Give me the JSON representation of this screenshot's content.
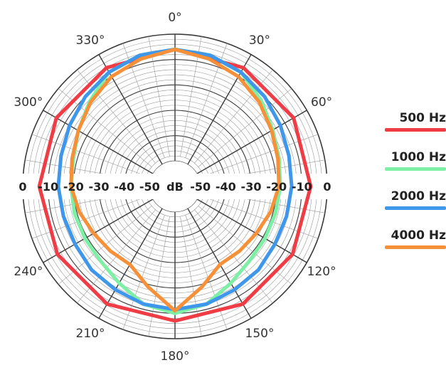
{
  "chart_data": {
    "type": "polar",
    "title": "",
    "angle_unit_label": "°",
    "angle_ticks": [
      0,
      30,
      60,
      120,
      150,
      180,
      210,
      240,
      300,
      330
    ],
    "angle_tick_labels": [
      "0°",
      "30°",
      "60°",
      "120°",
      "150°",
      "180°",
      "210°",
      "240°",
      "300°",
      "330°"
    ],
    "radial_axis_label": "dB",
    "radial_tick_labels": [
      "0",
      "-10",
      "-20",
      "-30",
      "-40",
      "-50"
    ],
    "radial_range_db": [
      -60,
      0
    ],
    "grid": true,
    "legend_position": "right",
    "series": [
      {
        "name": "500 Hz",
        "color": "#ef3c45",
        "angles": [
          0,
          30,
          60,
          90,
          120,
          150,
          180,
          210,
          240,
          270,
          300,
          330,
          360
        ],
        "values_db": [
          -6,
          -6,
          -6,
          -6.5,
          -6.5,
          -6.5,
          -7,
          -6.5,
          -6.5,
          -6.5,
          -6,
          -6,
          -6
        ]
      },
      {
        "name": "1000 Hz",
        "color": "#7ef0a5",
        "angles": [
          0,
          15,
          30,
          45,
          60,
          75,
          90,
          105,
          120,
          135,
          150,
          165,
          180,
          195,
          210,
          225,
          240,
          255,
          270,
          285,
          300,
          315,
          330,
          345,
          360
        ],
        "values_db": [
          -6,
          -6.5,
          -8,
          -12,
          -15.5,
          -17.5,
          -18.5,
          -19,
          -19,
          -18.5,
          -16,
          -12,
          -10,
          -12,
          -16,
          -18.5,
          -19,
          -19,
          -19,
          -18.5,
          -16,
          -12.5,
          -8,
          -6.5,
          -6
        ]
      },
      {
        "name": "2000 Hz",
        "color": "#3f97ec",
        "angles": [
          0,
          15,
          30,
          45,
          60,
          75,
          90,
          105,
          120,
          135,
          150,
          165,
          180,
          195,
          210,
          225,
          240,
          255,
          270,
          285,
          300,
          315,
          330,
          345,
          360
        ],
        "values_db": [
          -6,
          -6.5,
          -8,
          -10,
          -12,
          -13.5,
          -14,
          -14.5,
          -14.5,
          -13.5,
          -13,
          -12,
          -11.5,
          -12,
          -13,
          -13.5,
          -14.5,
          -14.5,
          -14,
          -13.5,
          -12,
          -10,
          -8,
          -6.5,
          -6
        ]
      },
      {
        "name": "4000 Hz",
        "color": "#f6913a",
        "angles": [
          0,
          15,
          30,
          45,
          60,
          75,
          90,
          105,
          120,
          135,
          150,
          165,
          180,
          195,
          210,
          225,
          240,
          255,
          270,
          285,
          300,
          315,
          330,
          345,
          360
        ],
        "values_db": [
          -6,
          -8,
          -10,
          -13,
          -16,
          -18,
          -19,
          -21,
          -23,
          -24,
          -24.5,
          -19,
          -11,
          -19,
          -24.5,
          -24,
          -23,
          -21,
          -19,
          -18,
          -16,
          -13,
          -10,
          -8,
          -6
        ]
      }
    ]
  },
  "legend": {
    "items": [
      {
        "label": "500 Hz",
        "color": "#ef3c45"
      },
      {
        "label": "1000 Hz",
        "color": "#7ef0a5"
      },
      {
        "label": "2000 Hz",
        "color": "#3f97ec"
      },
      {
        "label": "4000 Hz",
        "color": "#f6913a"
      }
    ]
  }
}
